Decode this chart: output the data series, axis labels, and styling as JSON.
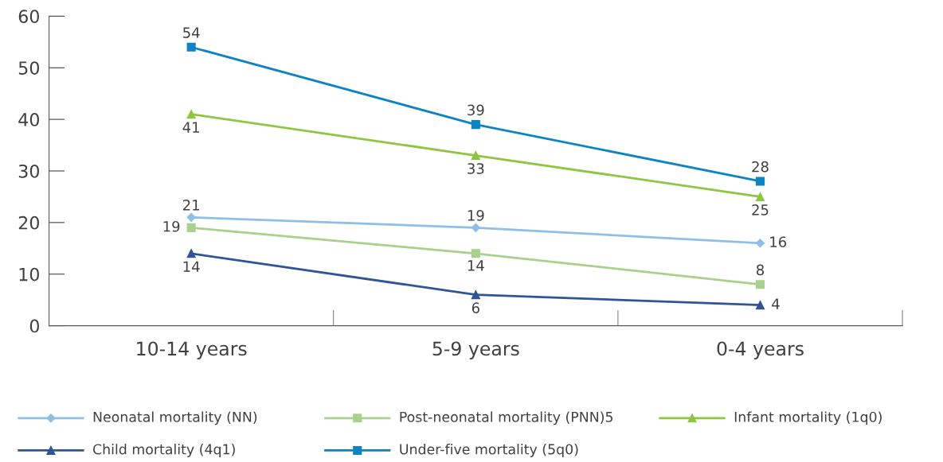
{
  "chart_data": {
    "type": "line",
    "categories": [
      "10-14 years",
      "5-9 years",
      "0-4 years"
    ],
    "series": [
      {
        "name": "Neonatal mortality (NN)",
        "color": "#8ebfe6",
        "marker": "diamond",
        "values": [
          21,
          19,
          16
        ]
      },
      {
        "name": "Post-neonatal mortality (PNN)5",
        "color": "#a9d18e",
        "marker": "square",
        "values": [
          19,
          14,
          8
        ]
      },
      {
        "name": "Infant mortality (1q0)",
        "color": "#8dc63f",
        "marker": "triangle",
        "values": [
          41,
          33,
          25
        ]
      },
      {
        "name": "Child mortality (4q1)",
        "color": "#2e5597",
        "marker": "triangle",
        "values": [
          14,
          6,
          4
        ]
      },
      {
        "name": "Under-five mortality (5q0)",
        "color": "#0b84c6",
        "marker": "square",
        "values": [
          54,
          39,
          28
        ]
      }
    ],
    "ylim": [
      0,
      60
    ],
    "yticks": [
      0,
      10,
      20,
      30,
      40,
      50,
      60
    ],
    "grid": false,
    "legend": "bottom",
    "line_style": "solid",
    "data_labels": true
  }
}
